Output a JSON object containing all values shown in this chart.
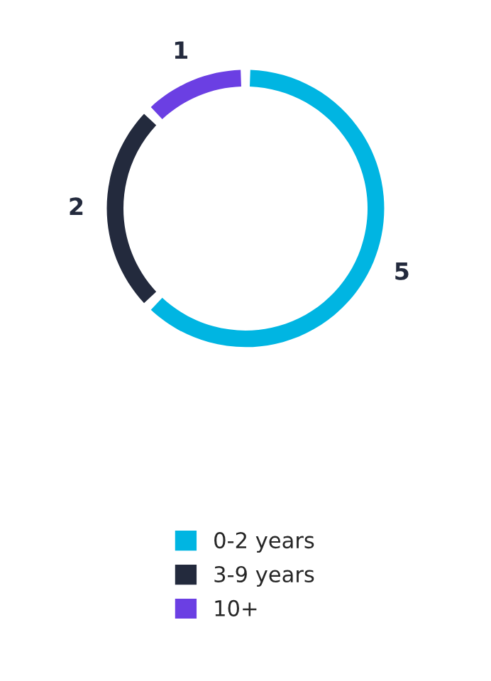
{
  "chart_data": {
    "type": "donut",
    "categories": [
      "0-2 years",
      "3-9 years",
      "10+"
    ],
    "values": [
      5,
      2,
      1
    ],
    "colors": [
      "#00b5e2",
      "#232a3d",
      "#6b3fe3"
    ],
    "data_labels": true,
    "legend": "bottom"
  }
}
